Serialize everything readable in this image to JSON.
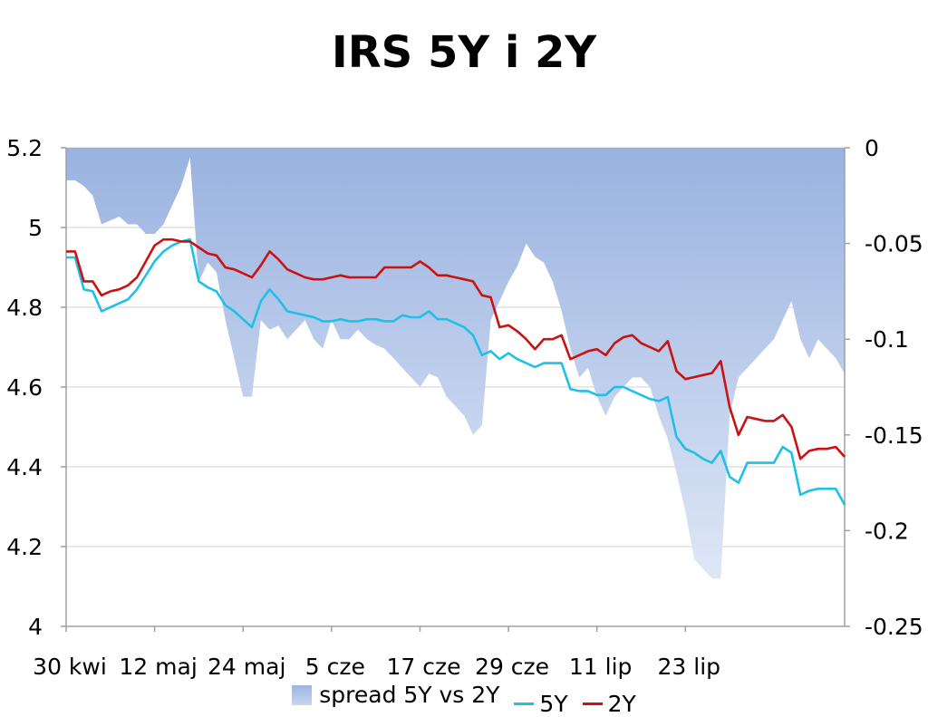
{
  "chart_data": {
    "type": "line",
    "title": "IRS 5Y i 2Y",
    "x_tick_labels": [
      "30 kwi",
      "12 maj",
      "24 maj",
      "5 cze",
      "17 cze",
      "29 cze",
      "11 lip",
      "23 lip"
    ],
    "x_tick_index": [
      0,
      10,
      20,
      30,
      40,
      50,
      60,
      70
    ],
    "left_axis": {
      "ylim": [
        4,
        5.2
      ],
      "ticks": [
        "5.2",
        "5",
        "4.8",
        "4.6",
        "4.4",
        "4.2",
        "4"
      ],
      "tick_values": [
        5.2,
        5,
        4.8,
        4.6,
        4.4,
        4.2,
        4
      ]
    },
    "right_axis": {
      "ylim": [
        -0.25,
        0
      ],
      "ticks": [
        "0",
        "-0.05",
        "-0.1",
        "-0.15",
        "-0.2",
        "-0.25"
      ],
      "tick_values": [
        0,
        -0.05,
        -0.1,
        -0.15,
        -0.2,
        -0.25
      ]
    },
    "grid": "horizontal",
    "legend_position": "bottom",
    "series": [
      {
        "name": "5Y",
        "axis": "left",
        "color": "#1ec0e8",
        "style": "line",
        "values": [
          4.925,
          4.925,
          4.845,
          4.84,
          4.79,
          4.8,
          4.81,
          4.82,
          4.845,
          4.88,
          4.915,
          4.94,
          4.955,
          4.965,
          4.97,
          4.865,
          4.85,
          4.84,
          4.805,
          4.79,
          4.77,
          4.75,
          4.815,
          4.845,
          4.82,
          4.79,
          4.785,
          4.78,
          4.775,
          4.765,
          4.765,
          4.77,
          4.765,
          4.765,
          4.77,
          4.77,
          4.765,
          4.765,
          4.78,
          4.775,
          4.775,
          4.79,
          4.77,
          4.77,
          4.76,
          4.75,
          4.73,
          4.68,
          4.69,
          4.67,
          4.685,
          4.67,
          4.66,
          4.65,
          4.66,
          4.66,
          4.66,
          4.595,
          4.59,
          4.59,
          4.58,
          4.58,
          4.6,
          4.6,
          4.59,
          4.58,
          4.57,
          4.565,
          4.575,
          4.475,
          4.445,
          4.435,
          4.42,
          4.41,
          4.44,
          4.375,
          4.36,
          4.41,
          4.41,
          4.41,
          4.41,
          4.45,
          4.435,
          4.33,
          4.34,
          4.345,
          4.345,
          4.345,
          4.305
        ]
      },
      {
        "name": "2Y",
        "axis": "left",
        "color": "#cc1111",
        "style": "line",
        "values": [
          4.94,
          4.94,
          4.865,
          4.865,
          4.83,
          4.84,
          4.845,
          4.855,
          4.875,
          4.915,
          4.955,
          4.97,
          4.97,
          4.965,
          4.965,
          4.95,
          4.935,
          4.93,
          4.9,
          4.895,
          4.885,
          4.875,
          4.905,
          4.94,
          4.92,
          4.895,
          4.885,
          4.875,
          4.87,
          4.87,
          4.875,
          4.88,
          4.875,
          4.875,
          4.875,
          4.875,
          4.9,
          4.9,
          4.9,
          4.9,
          4.915,
          4.9,
          4.88,
          4.88,
          4.875,
          4.87,
          4.865,
          4.83,
          4.825,
          4.75,
          4.755,
          4.74,
          4.72,
          4.695,
          4.72,
          4.72,
          4.73,
          4.67,
          4.68,
          4.69,
          4.695,
          4.68,
          4.71,
          4.725,
          4.73,
          4.71,
          4.7,
          4.69,
          4.715,
          4.64,
          4.62,
          4.625,
          4.63,
          4.635,
          4.665,
          4.55,
          4.48,
          4.525,
          4.52,
          4.515,
          4.515,
          4.53,
          4.5,
          4.42,
          4.44,
          4.445,
          4.445,
          4.45,
          4.425
        ]
      },
      {
        "name": "spread 5Y vs 2Y",
        "axis": "right",
        "color": "#9fb4e0",
        "style": "area",
        "values": [
          -0.017,
          -0.017,
          -0.02,
          -0.025,
          -0.04,
          -0.038,
          -0.036,
          -0.04,
          -0.04,
          -0.045,
          -0.045,
          -0.04,
          -0.03,
          -0.02,
          -0.005,
          -0.07,
          -0.06,
          -0.065,
          -0.09,
          -0.11,
          -0.13,
          -0.13,
          -0.09,
          -0.095,
          -0.093,
          -0.1,
          -0.095,
          -0.09,
          -0.1,
          -0.105,
          -0.09,
          -0.1,
          -0.1,
          -0.095,
          -0.1,
          -0.103,
          -0.105,
          -0.11,
          -0.115,
          -0.12,
          -0.125,
          -0.118,
          -0.12,
          -0.13,
          -0.135,
          -0.14,
          -0.15,
          -0.145,
          -0.09,
          -0.08,
          -0.07,
          -0.062,
          -0.05,
          -0.057,
          -0.06,
          -0.07,
          -0.085,
          -0.105,
          -0.12,
          -0.115,
          -0.13,
          -0.14,
          -0.13,
          -0.125,
          -0.12,
          -0.12,
          -0.125,
          -0.14,
          -0.152,
          -0.17,
          -0.19,
          -0.215,
          -0.22,
          -0.225,
          -0.225,
          -0.14,
          -0.12,
          -0.115,
          -0.11,
          -0.105,
          -0.1,
          -0.09,
          -0.08,
          -0.1,
          -0.11,
          -0.1,
          -0.105,
          -0.11,
          -0.118
        ]
      }
    ],
    "legend": [
      {
        "label": "spread 5Y vs 2Y",
        "type": "area"
      },
      {
        "label": "5Y",
        "type": "line"
      },
      {
        "label": "2Y",
        "type": "line"
      }
    ]
  }
}
